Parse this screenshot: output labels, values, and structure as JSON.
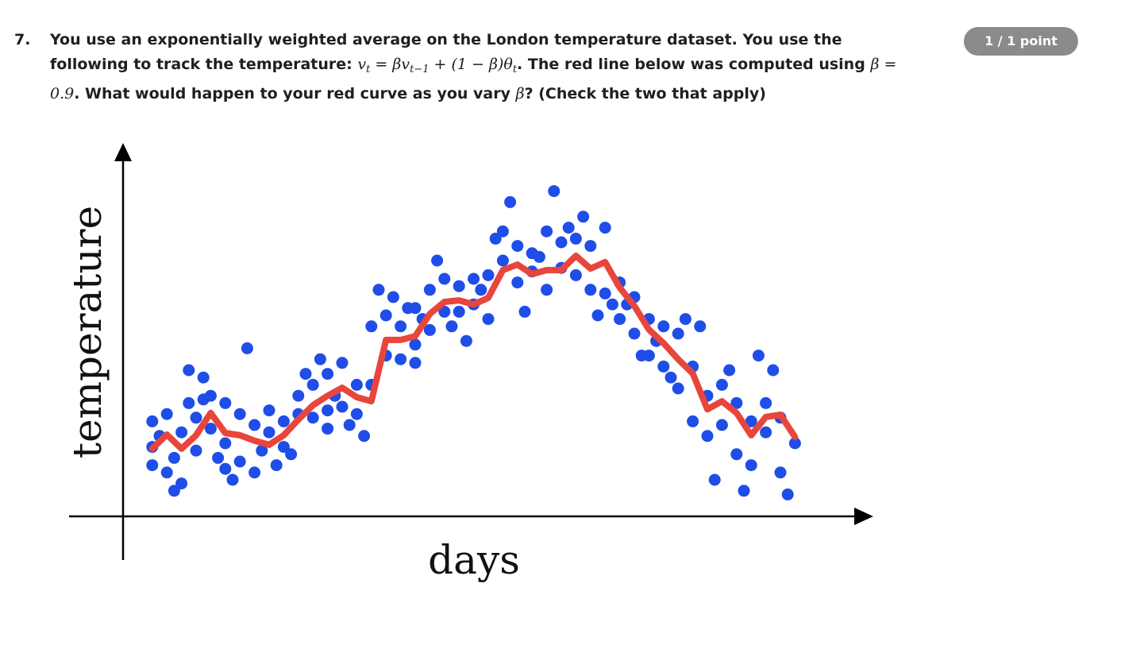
{
  "question": {
    "number": "7.",
    "text_1": "You use an exponentially weighted average on the London temperature dataset. You use the following to track the temperature: ",
    "formula": [
      "v",
      "t",
      " = βv",
      "t−1",
      " + (1 − β)θ",
      "t"
    ],
    "text_2": ". The red line below was computed using ",
    "formula_2": "β = 0.9",
    "text_3": ". What would happen to your red curve as you vary ",
    "formula_3": "β",
    "text_4": "? (Check the two that apply)"
  },
  "score": "1 / 1 point",
  "chart_data": {
    "type": "scatter",
    "x_label": "days",
    "y_label": "temperature",
    "xlim": [
      0,
      100
    ],
    "ylim": [
      0,
      100
    ],
    "scatter": {
      "color": "#1f4de8",
      "x": [
        4,
        4,
        4,
        5,
        6,
        6,
        7,
        7,
        8,
        8,
        9,
        9,
        10,
        10,
        11,
        11,
        12,
        12,
        13,
        14,
        14,
        14,
        15,
        16,
        16,
        17,
        18,
        18,
        19,
        20,
        20,
        21,
        22,
        22,
        23,
        24,
        24,
        25,
        26,
        26,
        27,
        28,
        28,
        28,
        29,
        30,
        30,
        31,
        32,
        32,
        33,
        34,
        34,
        35,
        36,
        36,
        37,
        38,
        38,
        39,
        40,
        40,
        40,
        41,
        42,
        42,
        43,
        44,
        44,
        45,
        46,
        46,
        47,
        48,
        48,
        49,
        50,
        50,
        51,
        52,
        52,
        53,
        54,
        54,
        55,
        56,
        56,
        57,
        58,
        58,
        59,
        60,
        60,
        61,
        62,
        62,
        63,
        64,
        64,
        65,
        66,
        66,
        67,
        68,
        68,
        69,
        70,
        70,
        71,
        72,
        72,
        73,
        74,
        74,
        75,
        76,
        76,
        77,
        78,
        78,
        79,
        80,
        80,
        81,
        82,
        82,
        83,
        84,
        84,
        85,
        86,
        86,
        87,
        88,
        88,
        89,
        90,
        90,
        91,
        92
      ],
      "values": [
        26,
        14,
        19,
        22,
        28,
        12,
        7,
        16,
        9,
        23,
        40,
        31,
        27,
        18,
        38,
        32,
        33,
        24,
        16,
        31,
        13,
        20,
        10,
        28,
        15,
        46,
        25,
        12,
        18,
        29,
        23,
        14,
        26,
        19,
        17,
        33,
        28,
        39,
        36,
        27,
        43,
        39,
        29,
        24,
        33,
        42,
        30,
        25,
        36,
        28,
        22,
        52,
        36,
        62,
        55,
        44,
        60,
        52,
        43,
        57,
        57,
        47,
        42,
        54,
        62,
        51,
        70,
        65,
        56,
        52,
        63,
        56,
        48,
        65,
        58,
        62,
        66,
        54,
        76,
        78,
        70,
        86,
        74,
        64,
        56,
        72,
        67,
        71,
        78,
        62,
        89,
        75,
        68,
        79,
        76,
        66,
        82,
        74,
        62,
        55,
        79,
        61,
        58,
        64,
        54,
        58,
        60,
        50,
        44,
        54,
        44,
        48,
        52,
        41,
        38,
        50,
        35,
        54,
        41,
        26,
        52,
        33,
        22,
        10,
        36,
        25,
        40,
        31,
        17,
        7,
        26,
        14,
        44,
        31,
        23,
        40,
        27,
        12,
        6,
        20
      ]
    },
    "line": {
      "color": "#e8453c",
      "x": [
        4,
        6,
        8,
        10,
        12,
        14,
        16,
        18,
        20,
        22,
        24,
        26,
        28,
        30,
        32,
        34,
        36,
        38,
        40,
        42,
        44,
        46,
        48,
        50,
        52,
        54,
        56,
        58,
        60,
        62,
        64,
        66,
        68,
        70,
        72,
        74,
        76,
        78,
        80,
        82,
        84,
        86,
        88,
        90,
        92
      ],
      "values": [
        18.5,
        22.4,
        18.5,
        22.2,
        28.3,
        22.8,
        22.2,
        20.7,
        19.6,
        22.2,
        26.5,
        30.4,
        33,
        35.2,
        32.6,
        31.5,
        48.3,
        48.3,
        49.3,
        55.4,
        58.7,
        59.1,
        58,
        59.8,
        67.4,
        68.9,
        66.3,
        67.4,
        67.4,
        71.3,
        67.8,
        69.6,
        62.6,
        57.6,
        51.1,
        47.4,
        43,
        39.1,
        29.3,
        31.5,
        28.3,
        22.2,
        27.2,
        27.8,
        21.7
      ]
    }
  }
}
